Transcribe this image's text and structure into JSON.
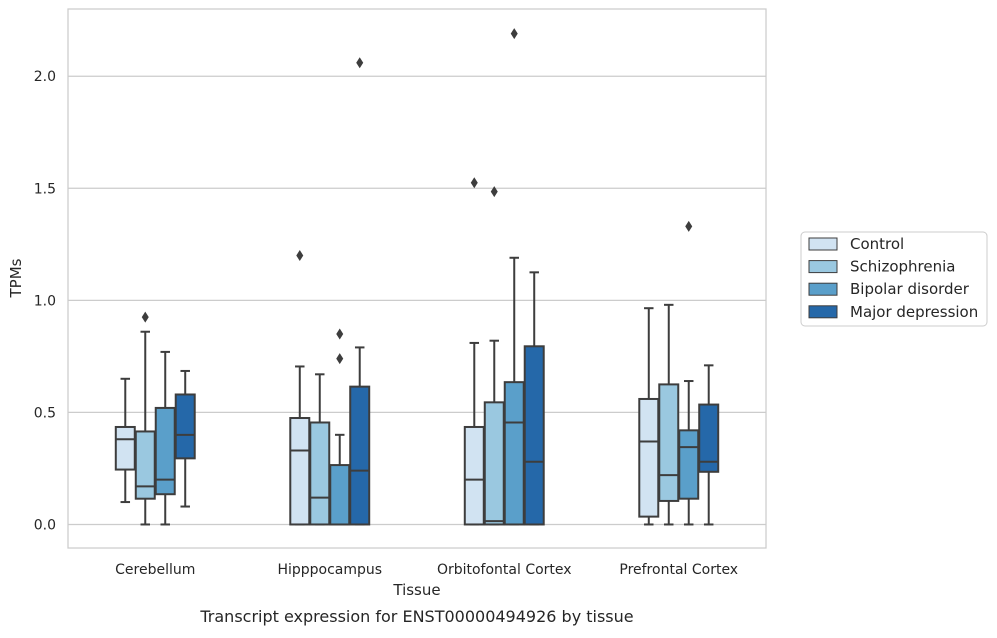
{
  "chart_data": {
    "type": "boxplot",
    "title": "",
    "caption": "Transcript expression for ENST00000494926 by tissue",
    "xlabel": "Tissue",
    "ylabel": "TPMs",
    "ylim": [
      -0.105,
      2.3
    ],
    "yticks": [
      0.0,
      0.5,
      1.0,
      1.5,
      2.0
    ],
    "ytick_labels": [
      "0.0",
      "0.5",
      "1.0",
      "1.5",
      "2.0"
    ],
    "grid": "horizontal",
    "legend_position": "right",
    "categories": [
      "Cerebellum",
      "Hipppocampus",
      "Orbitofontal Cortex",
      "Prefrontal Cortex"
    ],
    "series": [
      {
        "name": "Control",
        "color": "#d1e3f2",
        "boxes": [
          {
            "whislo": 0.1,
            "q1": 0.245,
            "med": 0.38,
            "q3": 0.435,
            "whishi": 0.65,
            "fliers": []
          },
          {
            "whislo": 0.0,
            "q1": 0.0,
            "med": 0.33,
            "q3": 0.475,
            "whishi": 0.705,
            "fliers": [
              1.2
            ]
          },
          {
            "whislo": 0.0,
            "q1": 0.0,
            "med": 0.2,
            "q3": 0.435,
            "whishi": 0.81,
            "fliers": [
              1.525
            ]
          },
          {
            "whislo": 0.0,
            "q1": 0.035,
            "med": 0.37,
            "q3": 0.56,
            "whishi": 0.965,
            "fliers": []
          }
        ]
      },
      {
        "name": "Schizophrenia",
        "color": "#9ac8e0",
        "boxes": [
          {
            "whislo": 0.0,
            "q1": 0.115,
            "med": 0.17,
            "q3": 0.415,
            "whishi": 0.86,
            "fliers": [
              0.925
            ]
          },
          {
            "whislo": 0.0,
            "q1": 0.0,
            "med": 0.12,
            "q3": 0.455,
            "whishi": 0.67,
            "fliers": []
          },
          {
            "whislo": 0.0,
            "q1": 0.0,
            "med": 0.015,
            "q3": 0.545,
            "whishi": 0.82,
            "fliers": [
              1.485
            ]
          },
          {
            "whislo": 0.0,
            "q1": 0.105,
            "med": 0.22,
            "q3": 0.625,
            "whishi": 0.98,
            "fliers": []
          }
        ]
      },
      {
        "name": "Bipolar disorder",
        "color": "#5a9fca",
        "boxes": [
          {
            "whislo": 0.0,
            "q1": 0.135,
            "med": 0.2,
            "q3": 0.52,
            "whishi": 0.77,
            "fliers": []
          },
          {
            "whislo": 0.0,
            "q1": 0.0,
            "med": 0.0,
            "q3": 0.265,
            "whishi": 0.4,
            "fliers": [
              0.74,
              0.85
            ]
          },
          {
            "whislo": 0.0,
            "q1": 0.0,
            "med": 0.455,
            "q3": 0.635,
            "whishi": 1.19,
            "fliers": [
              2.19
            ]
          },
          {
            "whislo": 0.0,
            "q1": 0.115,
            "med": 0.345,
            "q3": 0.42,
            "whishi": 0.64,
            "fliers": [
              1.33
            ]
          }
        ]
      },
      {
        "name": "Major depression",
        "color": "#2568a9",
        "boxes": [
          {
            "whislo": 0.08,
            "q1": 0.295,
            "med": 0.4,
            "q3": 0.58,
            "whishi": 0.685,
            "fliers": []
          },
          {
            "whislo": 0.0,
            "q1": 0.0,
            "med": 0.24,
            "q3": 0.615,
            "whishi": 0.79,
            "fliers": [
              2.06
            ]
          },
          {
            "whislo": 0.0,
            "q1": 0.0,
            "med": 0.28,
            "q3": 0.795,
            "whishi": 1.125,
            "fliers": []
          },
          {
            "whislo": 0.0,
            "q1": 0.235,
            "med": 0.28,
            "q3": 0.535,
            "whishi": 0.71,
            "fliers": []
          }
        ]
      }
    ]
  }
}
